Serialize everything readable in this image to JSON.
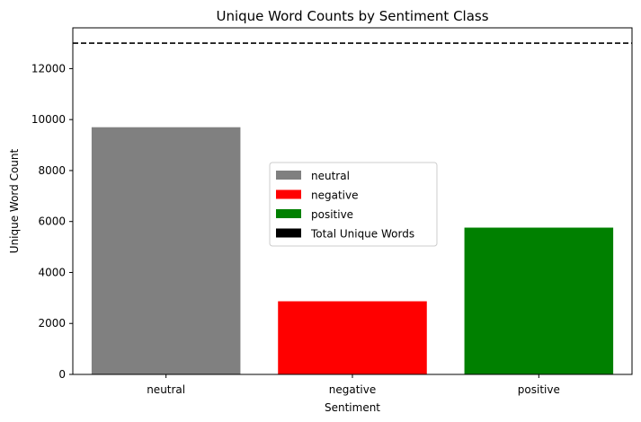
{
  "chart_data": {
    "type": "bar",
    "title": "Unique Word Counts by Sentiment Class",
    "xlabel": "Sentiment",
    "ylabel": "Unique Word Count",
    "categories": [
      "neutral",
      "negative",
      "positive"
    ],
    "values": [
      9700,
      2870,
      5760
    ],
    "colors": [
      "#808080",
      "#ff0000",
      "#008000"
    ],
    "ylim": [
      0,
      13600
    ],
    "yticks": [
      0,
      2000,
      4000,
      6000,
      8000,
      10000,
      12000
    ],
    "reference_line": {
      "name": "Total Unique Words",
      "value": 13000,
      "style": "dashed",
      "color": "#000000"
    },
    "legend": {
      "placement": "center-right",
      "entries": [
        {
          "label": "neutral",
          "color": "#808080"
        },
        {
          "label": "negative",
          "color": "#ff0000"
        },
        {
          "label": "positive",
          "color": "#008000"
        },
        {
          "label": "Total Unique Words",
          "color": "#000000"
        }
      ]
    },
    "grid": false
  }
}
